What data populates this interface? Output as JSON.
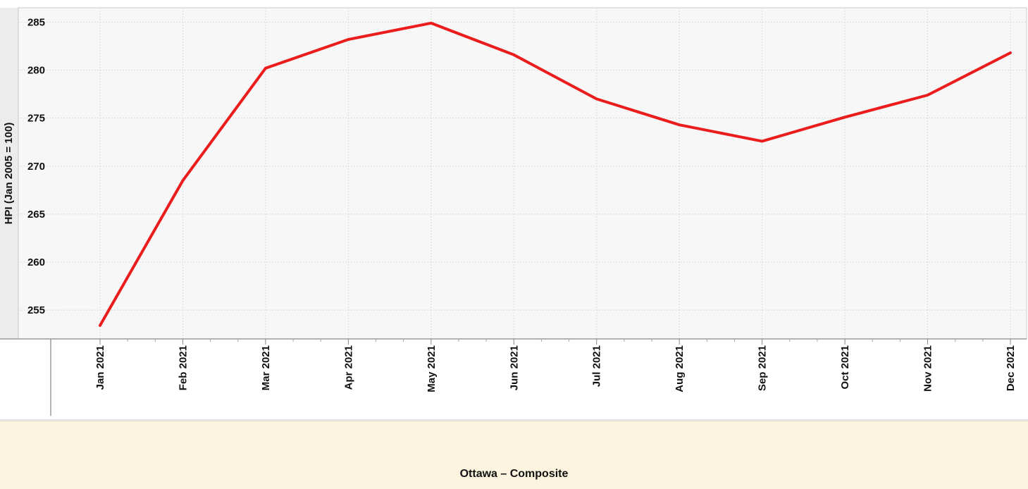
{
  "chart_data": {
    "type": "line",
    "title": "Ottawa – Composite",
    "ylabel": "HPI (Jan 2005 = 100)",
    "xlabel": "",
    "categories": [
      "Jan 2021",
      "Feb 2021",
      "Mar 2021",
      "Apr 2021",
      "May 2021",
      "Jun 2021",
      "Jul 2021",
      "Aug 2021",
      "Sep 2021",
      "Oct 2021",
      "Nov 2021",
      "Dec 2021"
    ],
    "series": [
      {
        "values": [
          253.4,
          268.5,
          280.2,
          283.2,
          284.9,
          281.6,
          277.0,
          274.3,
          272.6,
          275.1,
          277.4,
          281.8
        ]
      }
    ],
    "ylim": [
      252,
      286.5
    ],
    "yticks": [
      255,
      260,
      265,
      270,
      275,
      280,
      285
    ],
    "grid": true,
    "line_color": "#ea1c1c"
  }
}
